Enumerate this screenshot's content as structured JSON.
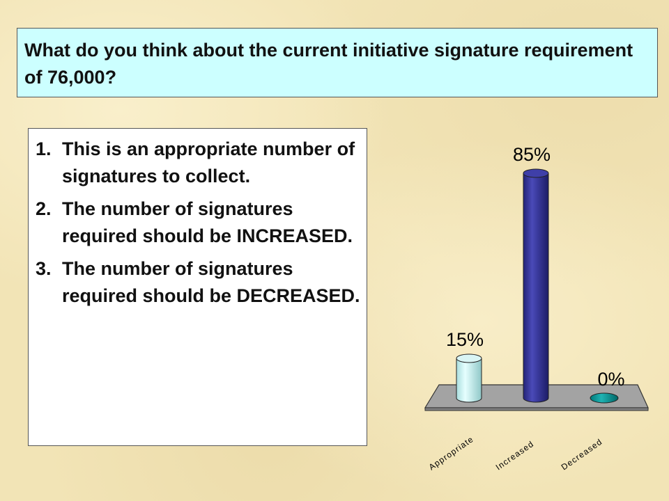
{
  "question": "What do you think about the current initiative signature requirement of 76,000?",
  "options": [
    {
      "number": "1.",
      "text": "This is an appropriate number of signatures to collect."
    },
    {
      "number": "2.",
      "text": "The number of signatures required should be INCREASED."
    },
    {
      "number": "3.",
      "text": "The number of signatures required should be DECREASED."
    }
  ],
  "chart_data": {
    "type": "bar",
    "style": "3d-cylinder",
    "categories": [
      "Appropriate",
      "Increased",
      "Decreased"
    ],
    "values": [
      15,
      85,
      0
    ],
    "data_labels": [
      "15%",
      "85%",
      "0%"
    ],
    "ylim": [
      0,
      100
    ],
    "grid": false,
    "colors": [
      "#ccffff",
      "#333399",
      "#009999"
    ],
    "title": "",
    "xlabel": "",
    "ylabel": ""
  }
}
